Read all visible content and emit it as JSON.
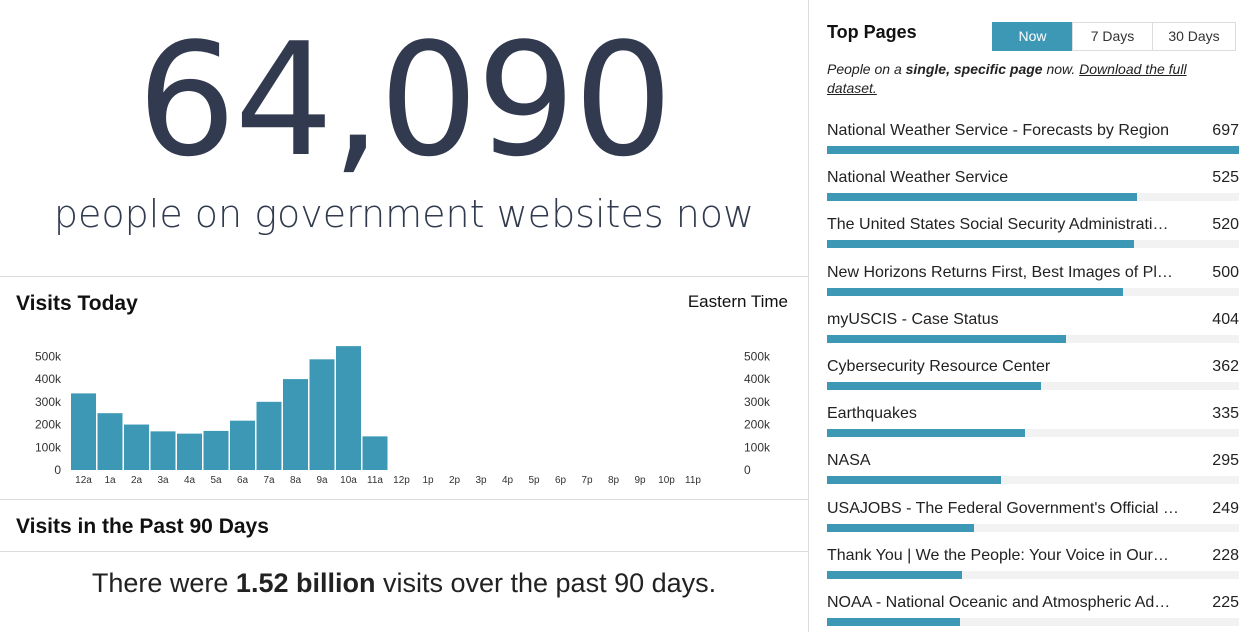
{
  "hero": {
    "count": "64,090",
    "subtitle": "people on government websites now"
  },
  "visits_today": {
    "title": "Visits Today",
    "timezone": "Eastern Time"
  },
  "visits_90": {
    "title": "Visits in the Past 90 Days",
    "prefix": "There were ",
    "amount": "1.52 billion",
    "suffix": " visits over the past 90 days."
  },
  "top_pages": {
    "title": "Top Pages",
    "tabs": [
      "Now",
      "7 Days",
      "30 Days"
    ],
    "active_tab": "Now",
    "desc_pre": "People on a ",
    "desc_bold": "single, specific page",
    "desc_mid": " now. ",
    "desc_link": "Download the full dataset.",
    "items": [
      {
        "name": "National Weather Service - Forecasts by Region",
        "value": 697
      },
      {
        "name": "National Weather Service",
        "value": 525
      },
      {
        "name": "The United States Social Security Administrati…",
        "value": 520
      },
      {
        "name": "New Horizons Returns First, Best Images of Pl…",
        "value": 500
      },
      {
        "name": "myUSCIS - Case Status",
        "value": 404
      },
      {
        "name": "Cybersecurity Resource Center",
        "value": 362
      },
      {
        "name": "Earthquakes",
        "value": 335
      },
      {
        "name": "NASA",
        "value": 295
      },
      {
        "name": "USAJOBS - The Federal Government's Official J…",
        "value": 249
      },
      {
        "name": "Thank You | We the People: Your Voice in Our…",
        "value": 228
      },
      {
        "name": "NOAA - National Oceanic and Atmospheric Ad…",
        "value": 225
      }
    ]
  },
  "colors": {
    "accent": "#3d98b6",
    "hero_text": "#323a4f",
    "divider": "#dcdcdc"
  },
  "chart_data": {
    "type": "bar",
    "categories": [
      "12a",
      "1a",
      "2a",
      "3a",
      "4a",
      "5a",
      "6a",
      "7a",
      "8a",
      "9a",
      "10a",
      "11a",
      "12p",
      "1p",
      "2p",
      "3p",
      "4p",
      "5p",
      "6p",
      "7p",
      "8p",
      "9p",
      "10p",
      "11p"
    ],
    "values": [
      337000,
      250000,
      200000,
      170000,
      160000,
      172000,
      217000,
      300000,
      400000,
      487000,
      545000,
      148000,
      null,
      null,
      null,
      null,
      null,
      null,
      null,
      null,
      null,
      null,
      null,
      null
    ],
    "yticks": [
      "0",
      "100k",
      "200k",
      "300k",
      "400k",
      "500k"
    ],
    "ylim": [
      0,
      550000
    ]
  }
}
